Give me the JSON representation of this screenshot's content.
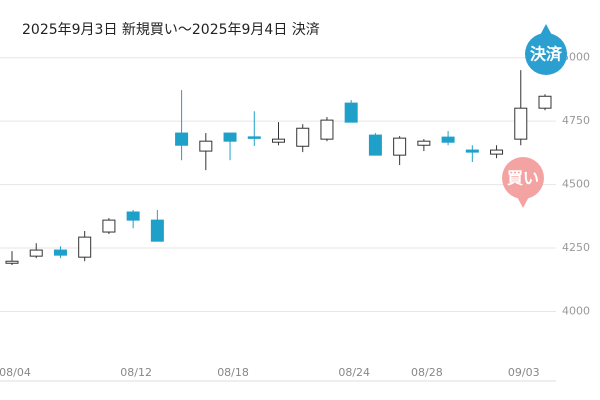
{
  "chart_data": {
    "type": "candlestick",
    "title": "2025年9月3日 新規買い〜2025年9月4日 決済",
    "categories": [
      "08/04",
      null,
      null,
      null,
      null,
      "08/12",
      null,
      null,
      null,
      "08/18",
      null,
      null,
      null,
      null,
      "08/24",
      null,
      null,
      "08/28",
      null,
      null,
      null,
      "09/03",
      null
    ],
    "open": [
      4190,
      4218,
      4242,
      4214,
      4313,
      4392,
      4360,
      4703,
      4632,
      4703,
      4688,
      4667,
      4651,
      4679,
      4821,
      4695,
      4616,
      4655,
      4687,
      4636,
      4620,
      4679,
      4801
    ],
    "high": [
      4238,
      4269,
      4257,
      4317,
      4368,
      4400,
      4400,
      4872,
      4703,
      4703,
      4789,
      4746,
      4738,
      4766,
      4833,
      4703,
      4691,
      4679,
      4711,
      4655,
      4655,
      4951,
      4856
    ],
    "low": [
      4183,
      4210,
      4210,
      4198,
      4305,
      4328,
      4277,
      4596,
      4557,
      4596,
      4652,
      4655,
      4628,
      4671,
      4746,
      4616,
      4577,
      4632,
      4655,
      4589,
      4604,
      4655,
      4793
    ],
    "close": [
      4198,
      4242,
      4222,
      4293,
      4360,
      4360,
      4277,
      4655,
      4671,
      4671,
      4683,
      4679,
      4722,
      4754,
      4746,
      4616,
      4683,
      4671,
      4667,
      4628,
      4636,
      4801,
      4848
    ],
    "up_color": "#ffffff",
    "down_color": "#1fa0c9",
    "ylim": [
      3730,
      5050
    ],
    "yticks": [
      4000,
      4250,
      4500,
      4750,
      5000
    ],
    "grid": true,
    "annotations": [
      {
        "text": "買い",
        "color": "#f4a3a3"
      },
      {
        "text": "決済",
        "color": "#2a9fd0"
      }
    ]
  }
}
